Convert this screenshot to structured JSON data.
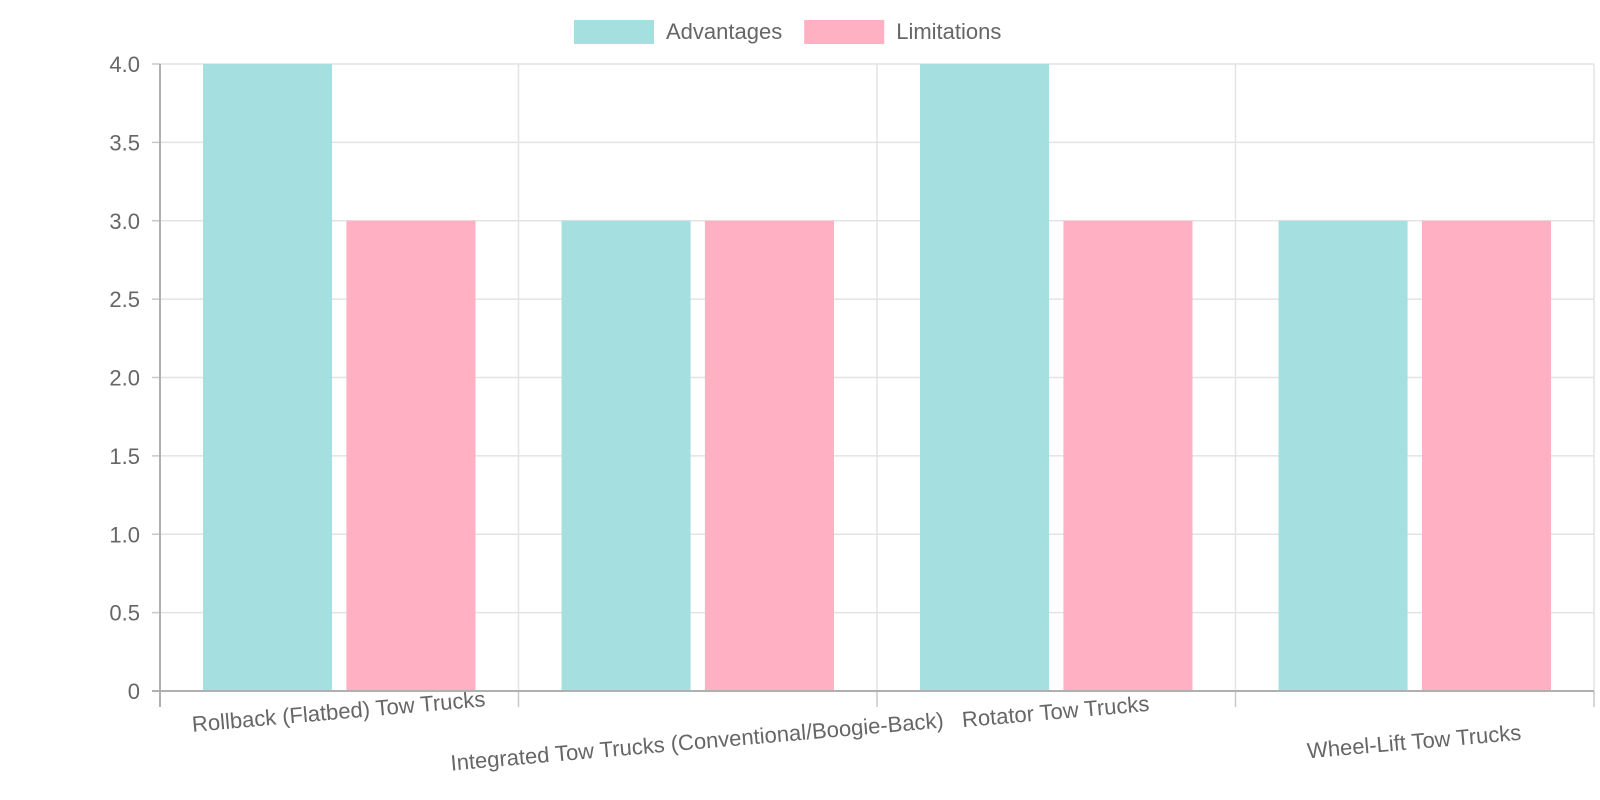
{
  "chart_data": {
    "type": "bar",
    "categories": [
      "Rollback (Flatbed) Tow Trucks",
      "Integrated Tow Trucks (Conventional/Boogie-Back)",
      "Rotator Tow Trucks",
      "Wheel-Lift Tow Trucks"
    ],
    "series": [
      {
        "name": "Advantages",
        "values": [
          4,
          3,
          4,
          3
        ],
        "color": "#a6dfe0"
      },
      {
        "name": "Limitations",
        "values": [
          3,
          3,
          3,
          3
        ],
        "color": "#ffb0c2"
      }
    ],
    "title": "",
    "xlabel": "",
    "ylabel": "",
    "ylim": [
      0,
      4
    ],
    "yticks": [
      "0",
      "0.5",
      "1.0",
      "1.5",
      "2.0",
      "2.5",
      "3.0",
      "3.5",
      "4.0"
    ],
    "grid": true,
    "legend_position": "top-center"
  }
}
